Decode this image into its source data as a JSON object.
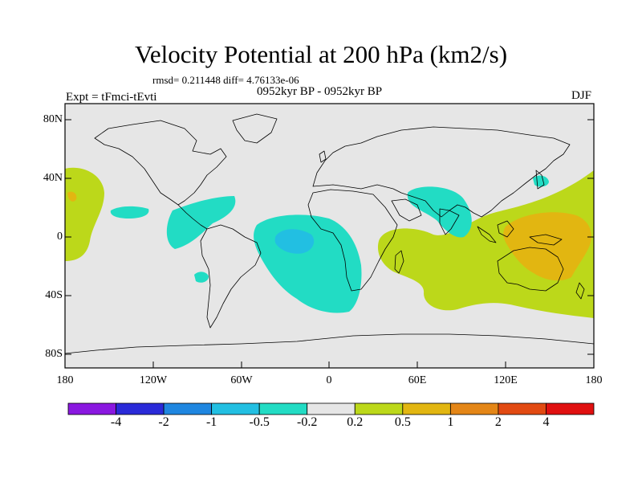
{
  "title": "Velocity Potential at 200 hPa (km2/s)",
  "stats": "rmsd= 0.211448 diff= 4.76133e-06",
  "expt": "Expt = tFmci-tEvti",
  "period": "0952kyr BP - 0952kyr BP",
  "season": "DJF",
  "y_ticks": [
    "80N",
    "40N",
    "0",
    "40S",
    "80S"
  ],
  "x_ticks": [
    "180",
    "120W",
    "60W",
    "0",
    "60E",
    "120E",
    "180"
  ],
  "colorbar": {
    "colors": [
      "#8a18e0",
      "#2a2ad8",
      "#1f86e0",
      "#22bfe2",
      "#22dcc4",
      "#e6e6e6",
      "#bcd81a",
      "#e2b611",
      "#e48617",
      "#e24a12",
      "#e01010"
    ],
    "labels": [
      "-4",
      "-2",
      "-1",
      "-0.5",
      "-0.2",
      "0.2",
      "0.5",
      "1",
      "2",
      "4"
    ]
  },
  "map_data": {
    "projection": "cylindrical equidistant",
    "lon_range": [
      -180,
      180
    ],
    "lat_range": [
      -90,
      90
    ],
    "field": "velocity potential difference",
    "units": "km2/s"
  }
}
